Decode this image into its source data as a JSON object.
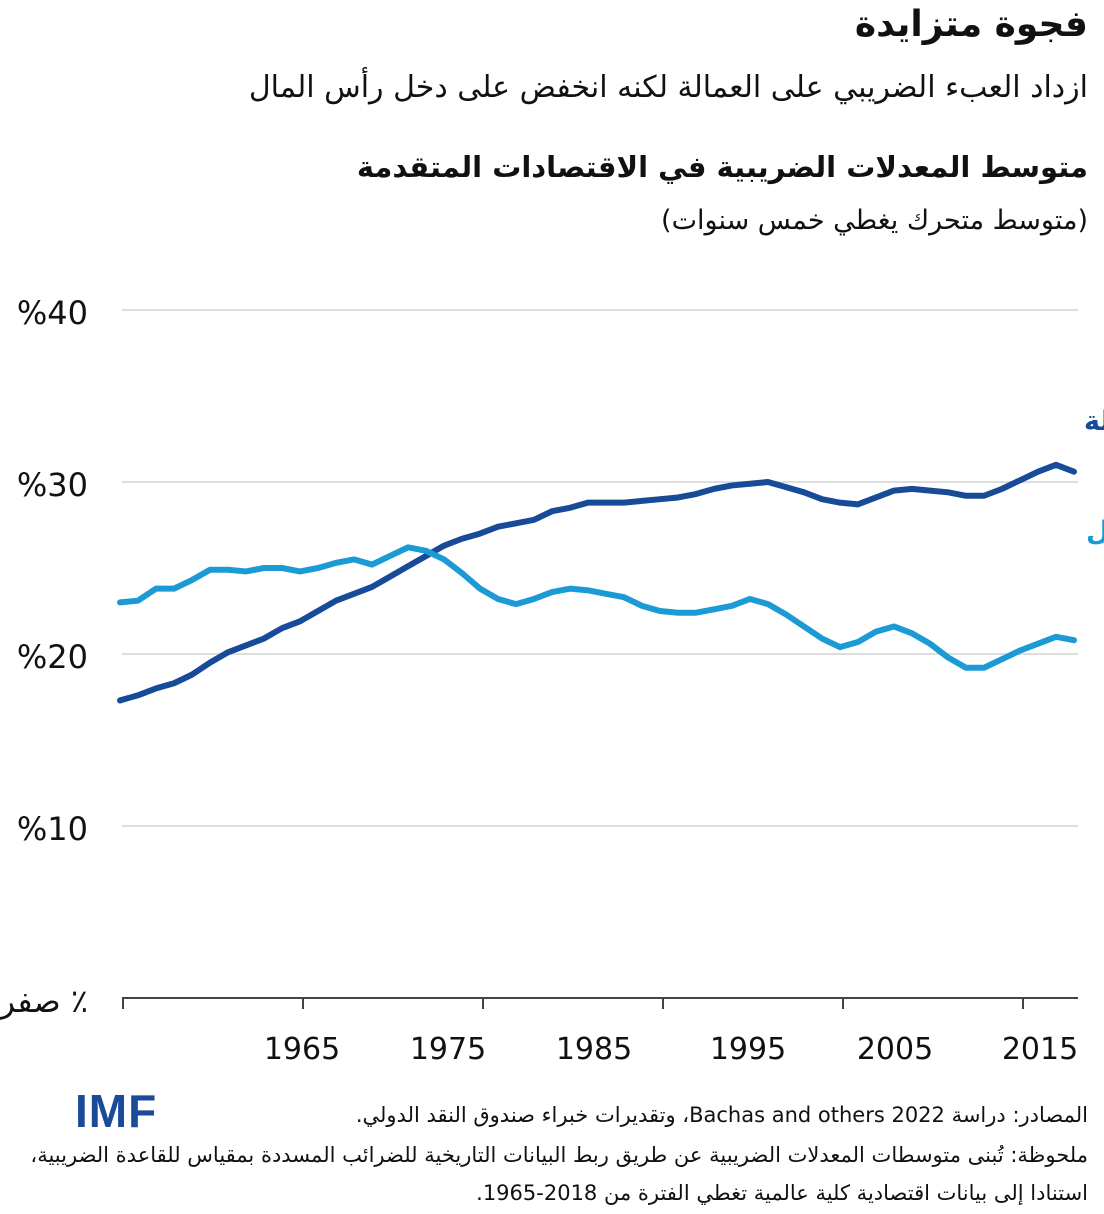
{
  "header": {
    "title": "فجوة متزايدة",
    "subtitle": "ازداد العبء الضريبي على العمالة لكنه انخفض على دخل رأس المال",
    "chart_title": "متوسط المعدلات الضريبية في الاقتصادات المتقدمة",
    "chart_note": "(متوسط متحرك يغطي خمس سنوات)"
  },
  "chart_data": {
    "type": "line",
    "title": "متوسط المعدلات الضريبية في الاقتصادات المتقدمة",
    "subtitle": "(متوسط متحرك يغطي خمس سنوات)",
    "xlim": [
      1965,
      2018
    ],
    "ylim": [
      0,
      40
    ],
    "grid": true,
    "x_tick_labels": [
      "1965",
      "1975",
      "1985",
      "1995",
      "2005",
      "2015"
    ],
    "y_tick_labels": [
      "صفر ٪",
      "%10",
      "%20",
      "%30",
      "%40"
    ],
    "y_ticks": [
      0,
      10,
      20,
      30,
      40
    ],
    "x_start": 1965,
    "series": [
      {
        "name": "الضريبة على العمالة",
        "color": "#174a97",
        "values": [
          17.3,
          17.6,
          18.0,
          18.3,
          18.8,
          19.5,
          20.1,
          20.5,
          20.9,
          21.5,
          21.9,
          22.5,
          23.1,
          23.5,
          23.9,
          24.5,
          25.1,
          25.7,
          26.3,
          26.7,
          27.0,
          27.4,
          27.6,
          27.8,
          28.3,
          28.5,
          28.8,
          28.8,
          28.8,
          28.9,
          29.0,
          29.1,
          29.3,
          29.6,
          29.8,
          29.9,
          30.0,
          29.7,
          29.4,
          29.0,
          28.8,
          28.7,
          29.1,
          29.5,
          29.6,
          29.5,
          29.4,
          29.2,
          29.2,
          29.6,
          30.1,
          30.6,
          31.0,
          30.6
        ]
      },
      {
        "name": "الضريبة على رأس المال",
        "color": "#1b9ad6",
        "values": [
          23.0,
          23.1,
          23.8,
          23.8,
          24.3,
          24.9,
          24.9,
          24.8,
          25.0,
          25.0,
          24.8,
          25.0,
          25.3,
          25.5,
          25.2,
          25.7,
          26.2,
          26.0,
          25.5,
          24.7,
          23.8,
          23.2,
          22.9,
          23.2,
          23.6,
          23.8,
          23.7,
          23.5,
          23.3,
          22.8,
          22.5,
          22.4,
          22.4,
          22.6,
          22.8,
          23.2,
          22.9,
          22.3,
          21.6,
          20.9,
          20.4,
          20.7,
          21.3,
          21.6,
          21.2,
          20.6,
          19.8,
          19.2,
          19.2,
          19.7,
          20.2,
          20.6,
          21.0,
          20.8
        ]
      }
    ]
  },
  "footer": {
    "logo": "IMF",
    "sources": "المصادر: دراسة Bachas and others 2022، وتقديرات خبراء صندوق النقد الدولي.",
    "note_line1": "ملحوظة: تُبنى متوسطات المعدلات الضريبية عن طريق ربط البيانات التاريخية للضرائب المسددة بمقياس للقاعدة الضريبية،",
    "note_line2": "استنادا إلى بيانات اقتصادية كلية عالمية تغطي الفترة من 2018-1965."
  },
  "colors": {
    "grid": "#dddddd",
    "axis": "#444444",
    "brand": "#1a4a98"
  }
}
